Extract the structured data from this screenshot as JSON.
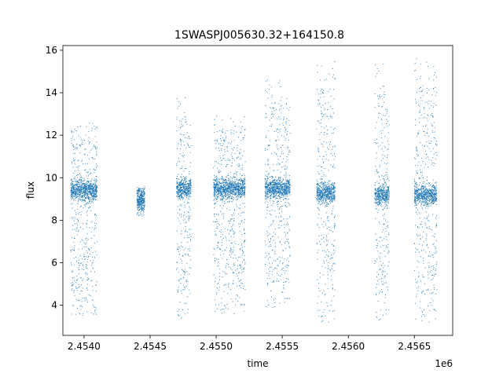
{
  "chart_data": {
    "type": "scatter",
    "title": "1SWASPJ005630.32+164150.8",
    "xlabel": "time",
    "ylabel": "flux",
    "x_offset_label": "1e6",
    "xlim": [
      2.45384,
      2.45679
    ],
    "ylim": [
      2.58,
      16.22
    ],
    "x_ticks": [
      2.454,
      2.4545,
      2.455,
      2.4555,
      2.456,
      2.4565
    ],
    "x_tick_labels": [
      "2.4540",
      "2.4545",
      "2.4550",
      "2.4555",
      "2.4560",
      "2.4565"
    ],
    "y_ticks": [
      4,
      6,
      8,
      10,
      12,
      14,
      16
    ],
    "y_tick_labels": [
      "4",
      "6",
      "8",
      "10",
      "12",
      "14",
      "16"
    ],
    "grid": false,
    "marker_color": "#1f77b4",
    "observing_seasons": [
      {
        "x_start": 2.4539,
        "x_end": 2.4541,
        "flux_center": 9.4,
        "flux_low": 3.5,
        "flux_high": 12.6
      },
      {
        "x_start": 2.4544,
        "x_end": 2.45446,
        "flux_center": 9.0,
        "flux_low": 8.2,
        "flux_high": 9.6
      },
      {
        "x_start": 2.4547,
        "x_end": 2.45481,
        "flux_center": 9.5,
        "flux_low": 3.3,
        "flux_high": 13.8
      },
      {
        "x_start": 2.45498,
        "x_end": 2.45522,
        "flux_center": 9.5,
        "flux_low": 3.6,
        "flux_high": 12.9
      },
      {
        "x_start": 2.45537,
        "x_end": 2.45556,
        "flux_center": 9.5,
        "flux_low": 3.8,
        "flux_high": 14.6
      },
      {
        "x_start": 2.45576,
        "x_end": 2.4559,
        "flux_center": 9.3,
        "flux_low": 3.2,
        "flux_high": 15.5
      },
      {
        "x_start": 2.4562,
        "x_end": 2.45631,
        "flux_center": 9.2,
        "flux_low": 3.2,
        "flux_high": 15.4
      },
      {
        "x_start": 2.4565,
        "x_end": 2.45667,
        "flux_center": 9.2,
        "flux_low": 3.2,
        "flux_high": 15.6
      }
    ]
  }
}
